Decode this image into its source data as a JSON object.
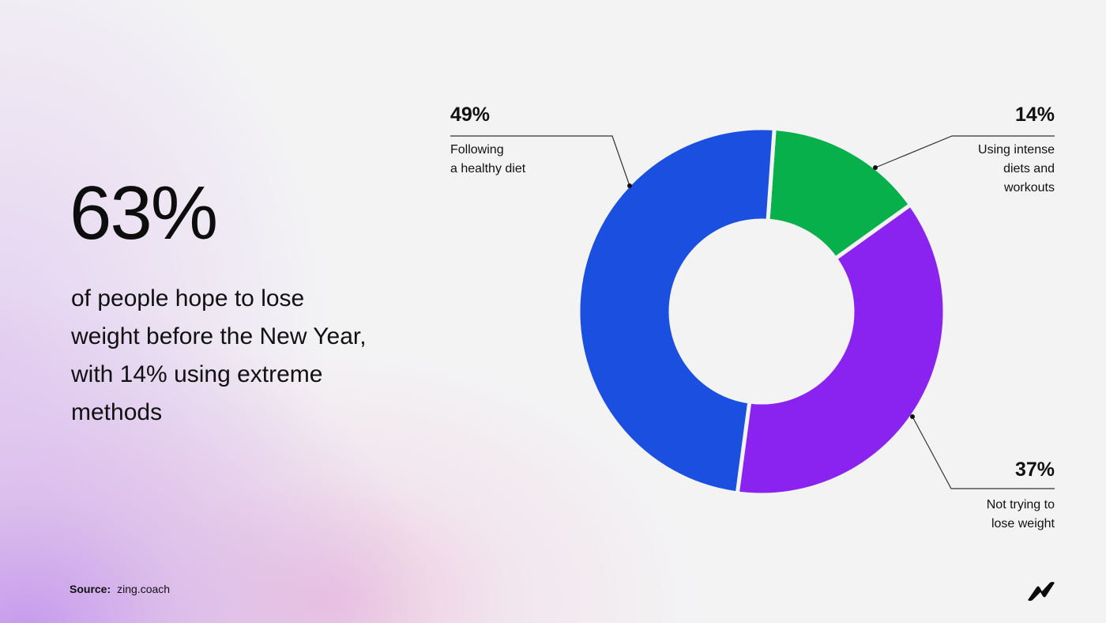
{
  "headline": {
    "stat": "63%",
    "lines": [
      "of people hope to lose",
      "weight before the New Year,",
      "with 14% using extreme",
      "methods"
    ]
  },
  "source": {
    "label": "Source:",
    "value": "zing.coach"
  },
  "logo": {
    "icon": "zigzag-logo-icon"
  },
  "colors": {
    "background": "#f3f3f4",
    "healthy_diet": "#1b4fe0",
    "intense_diets": "#07b04b",
    "not_trying": "#8a23ef",
    "leader_line": "#333333"
  },
  "callouts": [
    {
      "pct": "49%",
      "desc_lines": [
        "Following",
        "a healthy diet"
      ]
    },
    {
      "pct": "14%",
      "desc_lines": [
        "Using intense",
        "diets and",
        "workouts"
      ]
    },
    {
      "pct": "37%",
      "desc_lines": [
        "Not trying to",
        "lose weight"
      ]
    }
  ],
  "chart_data": {
    "type": "pie",
    "subtype": "donut",
    "title": "",
    "start_angle_deg": 4,
    "direction": "clockwise",
    "slices": [
      {
        "label": "Using intense diets and workouts",
        "value": 14,
        "color": "#07b04b"
      },
      {
        "label": "Not trying to lose weight",
        "value": 37,
        "color": "#8a23ef"
      },
      {
        "label": "Following a healthy diet",
        "value": 49,
        "color": "#1b4fe0"
      }
    ],
    "legend": "callouts with leader lines"
  }
}
